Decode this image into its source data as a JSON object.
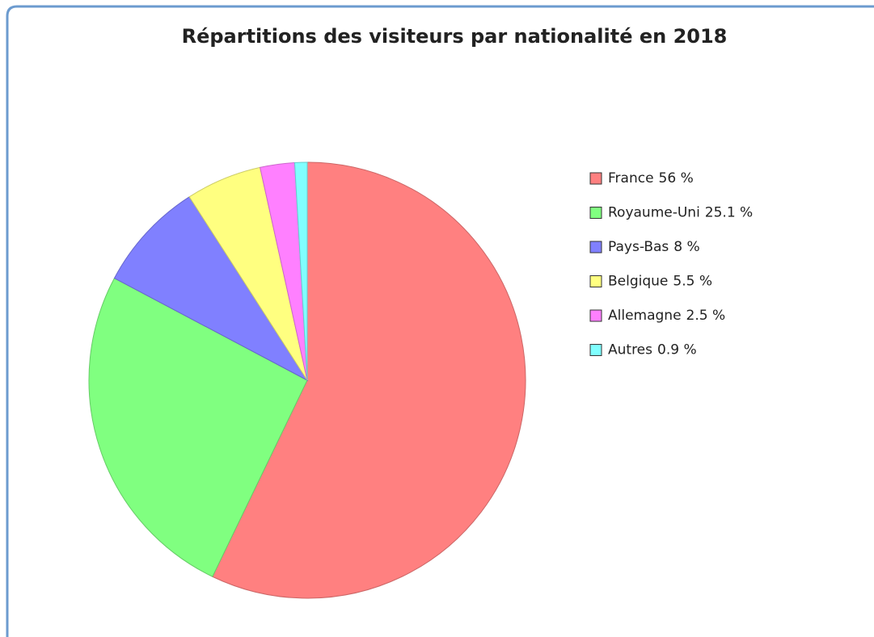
{
  "chart_data": {
    "type": "pie",
    "title": "Répartitions des visiteurs par nationalité en 2018",
    "categories": [
      "France",
      "Royaume-Uni",
      "Pays-Bas",
      "Belgique",
      "Allemagne",
      "Autres"
    ],
    "values": [
      56,
      25.1,
      8,
      5.5,
      2.5,
      0.9
    ],
    "value_labels": [
      "56 %",
      "25.1 %",
      "8 %",
      "5.5 %",
      "2.5 %",
      "0.9 %"
    ],
    "colors": [
      "#ff8080",
      "#80ff80",
      "#8080ff",
      "#ffff80",
      "#ff80ff",
      "#80ffff"
    ],
    "legend": "right"
  }
}
